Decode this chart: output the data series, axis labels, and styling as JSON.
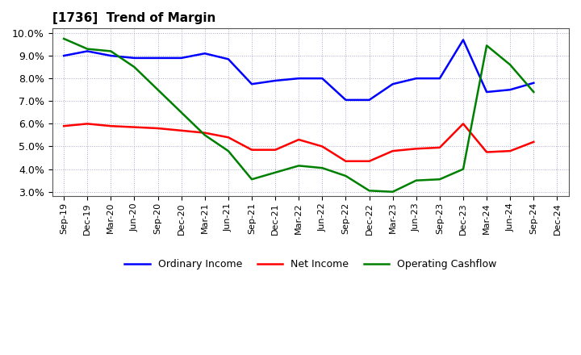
{
  "title": "[1736]  Trend of Margin",
  "x_labels": [
    "Sep-19",
    "Dec-19",
    "Mar-20",
    "Jun-20",
    "Sep-20",
    "Dec-20",
    "Mar-21",
    "Jun-21",
    "Sep-21",
    "Dec-21",
    "Mar-22",
    "Jun-22",
    "Sep-22",
    "Dec-22",
    "Mar-23",
    "Jun-23",
    "Sep-23",
    "Dec-23",
    "Mar-24",
    "Jun-24",
    "Sep-24",
    "Dec-24"
  ],
  "ordinary_income": [
    9.0,
    9.2,
    9.0,
    8.9,
    8.9,
    8.9,
    9.1,
    8.85,
    7.75,
    7.9,
    8.0,
    8.0,
    7.05,
    7.05,
    7.75,
    8.0,
    8.0,
    9.7,
    7.4,
    7.5,
    7.8,
    null
  ],
  "net_income": [
    5.9,
    6.0,
    5.9,
    5.85,
    5.8,
    5.7,
    5.6,
    5.4,
    4.85,
    4.85,
    5.3,
    5.0,
    4.35,
    4.35,
    4.8,
    4.9,
    4.95,
    6.0,
    4.75,
    4.8,
    5.2,
    null
  ],
  "operating_cashflow": [
    9.75,
    9.3,
    9.2,
    8.5,
    7.5,
    6.5,
    5.5,
    4.8,
    3.55,
    3.85,
    4.15,
    4.05,
    3.7,
    3.05,
    3.0,
    3.5,
    3.55,
    4.0,
    9.45,
    8.6,
    7.4,
    null
  ],
  "ylim": [
    2.8,
    10.2
  ],
  "yticks": [
    3.0,
    4.0,
    5.0,
    6.0,
    7.0,
    8.0,
    9.0,
    10.0
  ],
  "line_color_oi": "#0000FF",
  "line_color_ni": "#FF0000",
  "line_color_ocf": "#008000",
  "background_color": "#FFFFFF",
  "grid_color": "#AAAACC",
  "legend_labels": [
    "Ordinary Income",
    "Net Income",
    "Operating Cashflow"
  ]
}
